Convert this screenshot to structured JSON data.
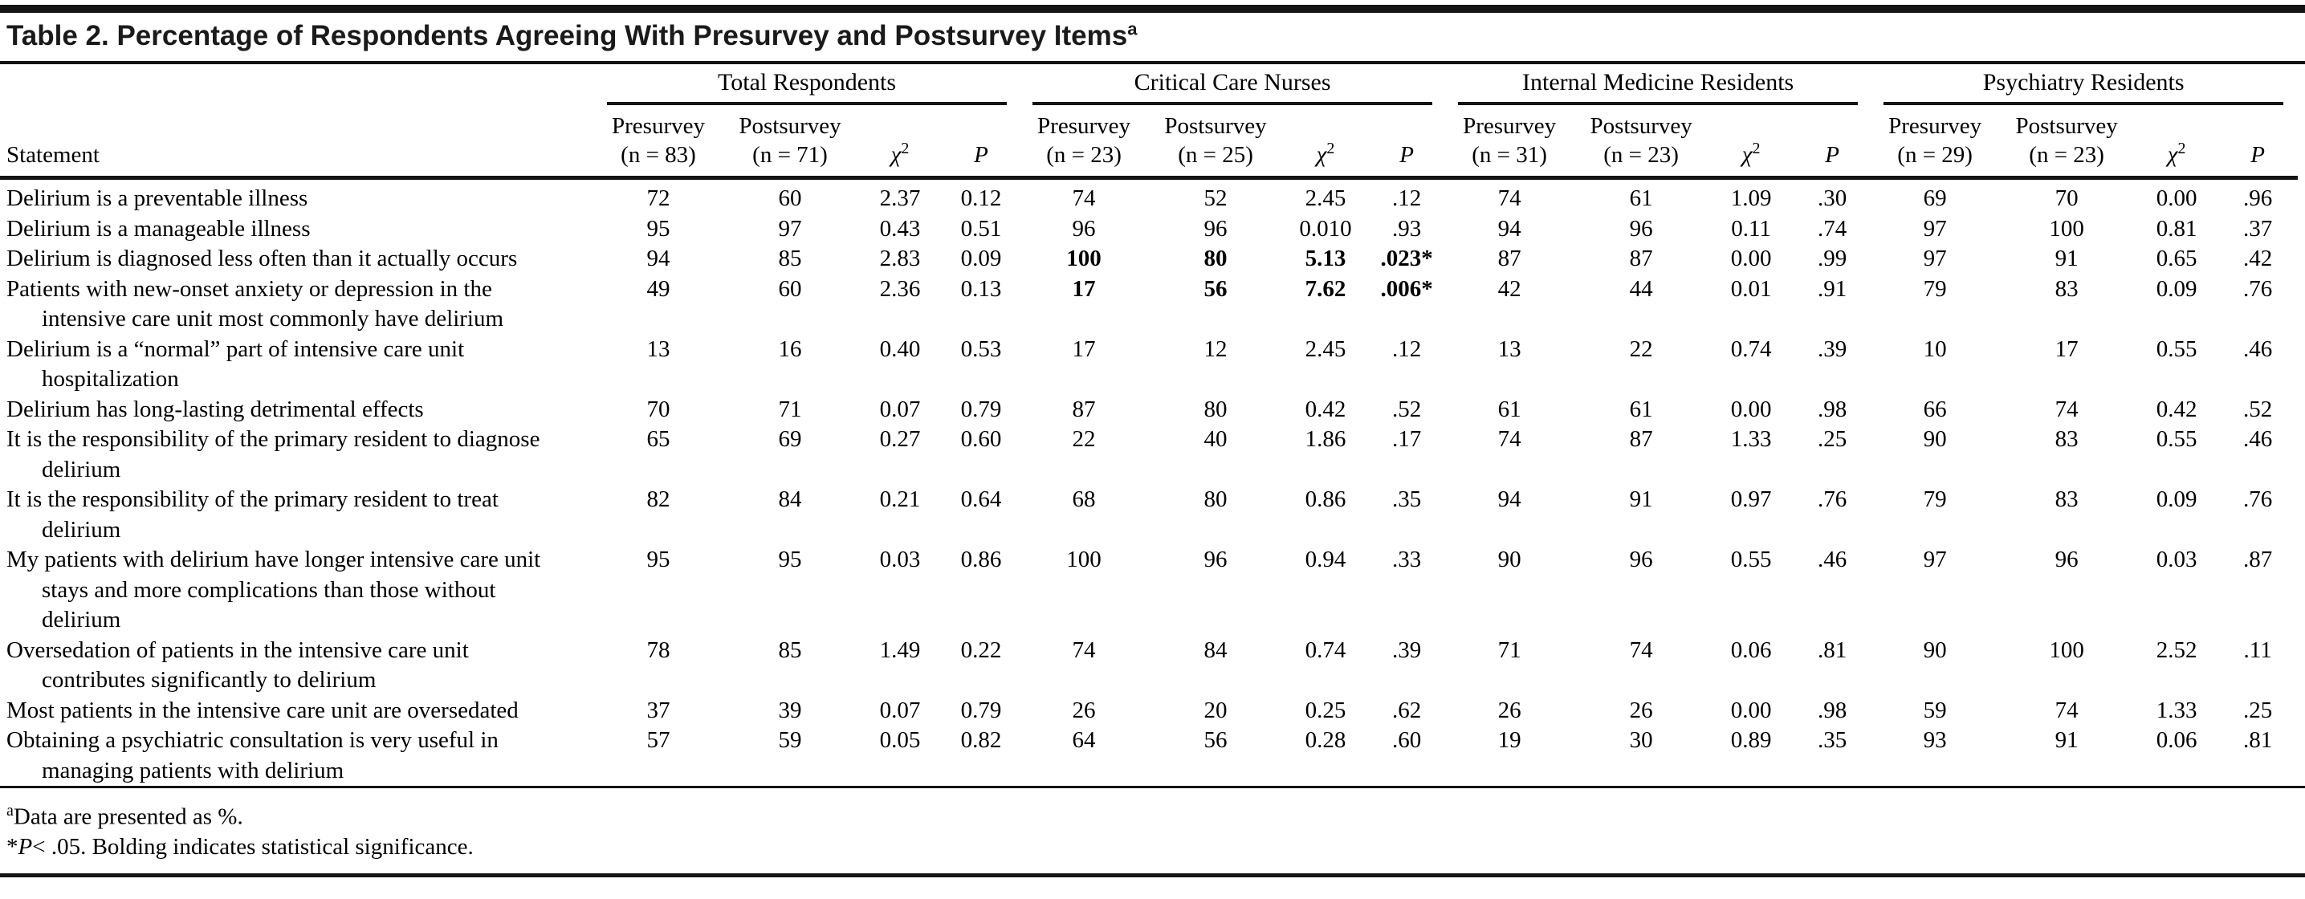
{
  "title": {
    "text": "Table 2. Percentage of Respondents Agreeing With Presurvey and Postsurvey Items",
    "sup": "a"
  },
  "header": {
    "statement_label": "Statement",
    "cols": {
      "chi": "χ",
      "chi_sup": "2",
      "p": "P"
    },
    "groups": [
      {
        "label": "Total Respondents",
        "pre": "Presurvey",
        "pre_n": "(n = 83)",
        "post": "Postsurvey",
        "post_n": "(n = 71)"
      },
      {
        "label": "Critical Care Nurses",
        "pre": "Presurvey",
        "pre_n": "(n = 23)",
        "post": "Postsurvey",
        "post_n": "(n = 25)"
      },
      {
        "label": "Internal Medicine Residents",
        "pre": "Presurvey",
        "pre_n": "(n = 31)",
        "post": "Postsurvey",
        "post_n": "(n = 23)"
      },
      {
        "label": "Psychiatry Residents",
        "pre": "Presurvey",
        "pre_n": "(n = 29)",
        "post": "Postsurvey",
        "post_n": "(n = 23)"
      }
    ]
  },
  "rows": [
    {
      "statement": "Delirium is a preventable illness",
      "values": [
        "72",
        "60",
        "2.37",
        "0.12",
        "74",
        "52",
        "2.45",
        ".12",
        "74",
        "61",
        "1.09",
        ".30",
        "69",
        "70",
        "0.00",
        ".96"
      ],
      "bold": []
    },
    {
      "statement": "Delirium is a manageable illness",
      "values": [
        "95",
        "97",
        "0.43",
        "0.51",
        "96",
        "96",
        "0.010",
        ".93",
        "94",
        "96",
        "0.11",
        ".74",
        "97",
        "100",
        "0.81",
        ".37"
      ],
      "bold": []
    },
    {
      "statement": "Delirium is diagnosed less often than it actually occurs",
      "values": [
        "94",
        "85",
        "2.83",
        "0.09",
        "100",
        "80",
        "5.13",
        ".023*",
        "87",
        "87",
        "0.00",
        ".99",
        "97",
        "91",
        "0.65",
        ".42"
      ],
      "bold": [
        4,
        5,
        6,
        7
      ]
    },
    {
      "statement": "Patients with new-onset anxiety or depression in the intensive care unit most commonly have delirium",
      "values": [
        "49",
        "60",
        "2.36",
        "0.13",
        "17",
        "56",
        "7.62",
        ".006*",
        "42",
        "44",
        "0.01",
        ".91",
        "79",
        "83",
        "0.09",
        ".76"
      ],
      "bold": [
        4,
        5,
        6,
        7
      ]
    },
    {
      "statement": "Delirium is a “normal” part of intensive care unit hospitalization",
      "values": [
        "13",
        "16",
        "0.40",
        "0.53",
        "17",
        "12",
        "2.45",
        ".12",
        "13",
        "22",
        "0.74",
        ".39",
        "10",
        "17",
        "0.55",
        ".46"
      ],
      "bold": []
    },
    {
      "statement": "Delirium has long-lasting detrimental effects",
      "values": [
        "70",
        "71",
        "0.07",
        "0.79",
        "87",
        "80",
        "0.42",
        ".52",
        "61",
        "61",
        "0.00",
        ".98",
        "66",
        "74",
        "0.42",
        ".52"
      ],
      "bold": []
    },
    {
      "statement": "It is the responsibility of the primary resident to diagnose delirium",
      "values": [
        "65",
        "69",
        "0.27",
        "0.60",
        "22",
        "40",
        "1.86",
        ".17",
        "74",
        "87",
        "1.33",
        ".25",
        "90",
        "83",
        "0.55",
        ".46"
      ],
      "bold": []
    },
    {
      "statement": "It is the responsibility of the primary resident to treat delirium",
      "values": [
        "82",
        "84",
        "0.21",
        "0.64",
        "68",
        "80",
        "0.86",
        ".35",
        "94",
        "91",
        "0.97",
        ".76",
        "79",
        "83",
        "0.09",
        ".76"
      ],
      "bold": []
    },
    {
      "statement": "My patients with delirium have longer intensive care unit stays and more complications than those without delirium",
      "values": [
        "95",
        "95",
        "0.03",
        "0.86",
        "100",
        "96",
        "0.94",
        ".33",
        "90",
        "96",
        "0.55",
        ".46",
        "97",
        "96",
        "0.03",
        ".87"
      ],
      "bold": []
    },
    {
      "statement": "Oversedation of patients in the intensive care unit contributes significantly to delirium",
      "values": [
        "78",
        "85",
        "1.49",
        "0.22",
        "74",
        "84",
        "0.74",
        ".39",
        "71",
        "74",
        "0.06",
        ".81",
        "90",
        "100",
        "2.52",
        ".11"
      ],
      "bold": []
    },
    {
      "statement": "Most patients in the intensive care unit are oversedated",
      "values": [
        "37",
        "39",
        "0.07",
        "0.79",
        "26",
        "20",
        "0.25",
        ".62",
        "26",
        "26",
        "0.00",
        ".98",
        "59",
        "74",
        "1.33",
        ".25"
      ],
      "bold": []
    },
    {
      "statement": "Obtaining a psychiatric consultation is very useful in managing patients with delirium",
      "values": [
        "57",
        "59",
        "0.05",
        "0.82",
        "64",
        "56",
        "0.28",
        ".60",
        "19",
        "30",
        "0.89",
        ".35",
        "93",
        "91",
        "0.06",
        ".81"
      ],
      "bold": []
    }
  ],
  "footnotes": {
    "a": {
      "sup": "a",
      "text": "Data are presented as %."
    },
    "star": {
      "star": "*",
      "p": "P",
      "text": "< .05. Bolding indicates statistical significance."
    }
  }
}
